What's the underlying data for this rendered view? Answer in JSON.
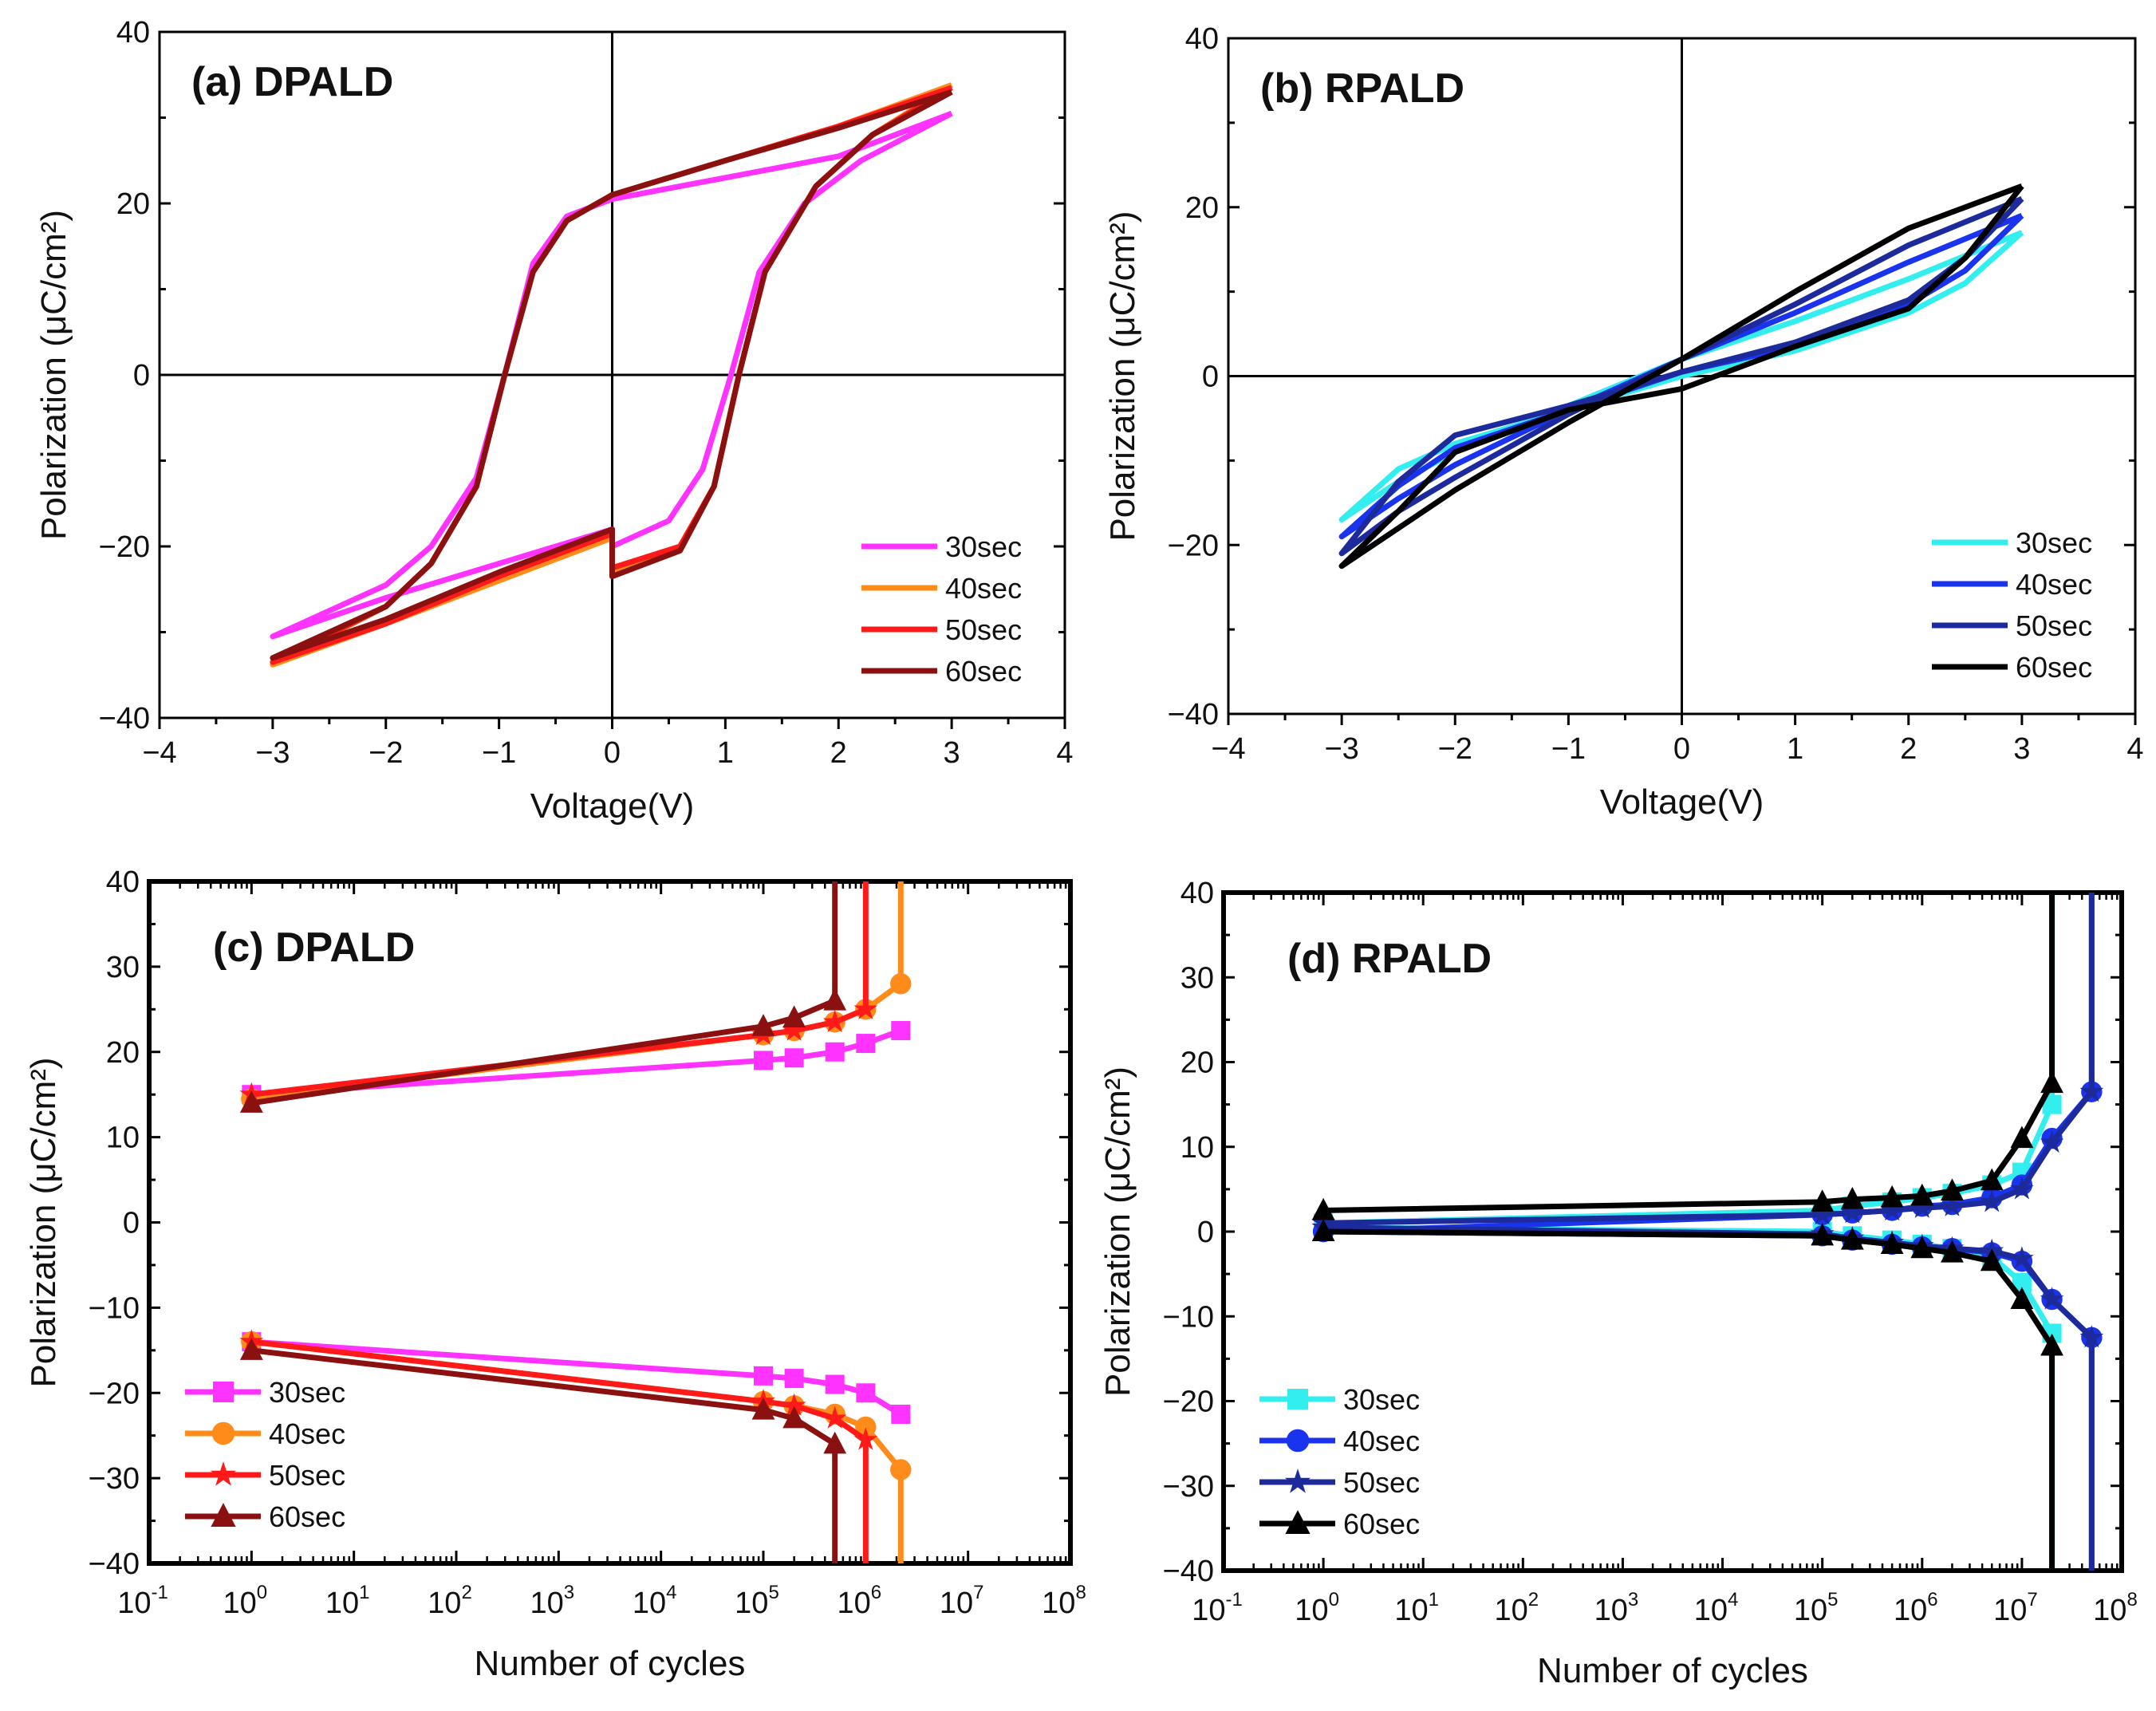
{
  "chart_data": [
    {
      "type": "line",
      "title": "(a) DPALD",
      "xlabel": "Voltage(V)",
      "ylabel": "Polarization (μC/cm²)",
      "xscale": "linear",
      "xlim": [
        -4,
        4
      ],
      "ylim": [
        -40,
        40
      ],
      "xticks": [
        -4,
        -3,
        -2,
        -1,
        0,
        1,
        2,
        3,
        4
      ],
      "yticks": [
        -40,
        -20,
        0,
        20,
        40
      ],
      "zero_axes": true,
      "grid": false,
      "legend": "bottom-right",
      "series": [
        {
          "name": "30sec",
          "color": "#ff33ff",
          "marker": "none",
          "points": [
            [
              3,
              30.5
            ],
            [
              2,
              25.5
            ],
            [
              1,
              23
            ],
            [
              0,
              20.5
            ],
            [
              -0.4,
              18.5
            ],
            [
              -0.7,
              13
            ],
            [
              -0.95,
              0
            ],
            [
              -1.2,
              -12
            ],
            [
              -1.6,
              -20
            ],
            [
              -2,
              -24.5
            ],
            [
              -3,
              -30.5
            ],
            [
              -2,
              -26
            ],
            [
              -1,
              -22
            ],
            [
              0,
              -18
            ],
            [
              0,
              -20
            ],
            [
              0.5,
              -17
            ],
            [
              0.8,
              -11
            ],
            [
              1.05,
              0
            ],
            [
              1.3,
              12
            ],
            [
              1.7,
              20
            ],
            [
              2.2,
              25
            ],
            [
              3,
              30.5
            ]
          ]
        },
        {
          "name": "40sec",
          "color": "#ff8c1a",
          "marker": "none",
          "points": [
            [
              3,
              33.8
            ],
            [
              2,
              29
            ],
            [
              1,
              25
            ],
            [
              0,
              21
            ],
            [
              -0.4,
              18
            ],
            [
              -0.7,
              12
            ],
            [
              -0.95,
              0
            ],
            [
              -1.2,
              -13
            ],
            [
              -1.6,
              -22
            ],
            [
              -2,
              -27
            ],
            [
              -3,
              -33.8
            ],
            [
              -2,
              -29
            ],
            [
              -1,
              -24
            ],
            [
              0,
              -19
            ],
            [
              0,
              -23
            ],
            [
              0.6,
              -20
            ],
            [
              0.9,
              -13
            ],
            [
              1.12,
              0
            ],
            [
              1.35,
              12
            ],
            [
              1.8,
              22
            ],
            [
              2.3,
              28
            ],
            [
              3,
              33.8
            ]
          ]
        },
        {
          "name": "50sec",
          "color": "#ff1a1a",
          "marker": "none",
          "points": [
            [
              3,
              33.5
            ],
            [
              2,
              29
            ],
            [
              1,
              25
            ],
            [
              0,
              21
            ],
            [
              -0.4,
              18
            ],
            [
              -0.7,
              12
            ],
            [
              -0.95,
              0
            ],
            [
              -1.2,
              -13
            ],
            [
              -1.6,
              -22
            ],
            [
              -2,
              -27
            ],
            [
              -3,
              -33.5
            ],
            [
              -2,
              -29
            ],
            [
              -1,
              -23.5
            ],
            [
              0,
              -18.5
            ],
            [
              0,
              -22.5
            ],
            [
              0.6,
              -20
            ],
            [
              0.9,
              -13
            ],
            [
              1.12,
              0
            ],
            [
              1.35,
              12
            ],
            [
              1.8,
              22
            ],
            [
              2.3,
              28
            ],
            [
              3,
              33.5
            ]
          ]
        },
        {
          "name": "60sec",
          "color": "#8b1010",
          "marker": "none",
          "points": [
            [
              3,
              33
            ],
            [
              2,
              28.8
            ],
            [
              1,
              25
            ],
            [
              0,
              21
            ],
            [
              -0.4,
              18
            ],
            [
              -0.7,
              12
            ],
            [
              -0.95,
              0
            ],
            [
              -1.2,
              -13
            ],
            [
              -1.6,
              -22
            ],
            [
              -2,
              -27
            ],
            [
              -3,
              -33
            ],
            [
              -2,
              -28.5
            ],
            [
              -1,
              -23
            ],
            [
              0,
              -18
            ],
            [
              0,
              -23.5
            ],
            [
              0.6,
              -20.5
            ],
            [
              0.9,
              -13
            ],
            [
              1.12,
              0
            ],
            [
              1.35,
              12
            ],
            [
              1.8,
              22
            ],
            [
              2.3,
              28
            ],
            [
              3,
              33
            ]
          ]
        }
      ]
    },
    {
      "type": "line",
      "title": "(b)  RPALD",
      "xlabel": "Voltage(V)",
      "ylabel": "Polarization (μC/cm²)",
      "xscale": "linear",
      "xlim": [
        -4,
        4
      ],
      "ylim": [
        -40,
        40
      ],
      "xticks": [
        -4,
        -3,
        -2,
        -1,
        0,
        1,
        2,
        3,
        4
      ],
      "yticks": [
        -40,
        -20,
        0,
        20,
        40
      ],
      "zero_axes": true,
      "grid": false,
      "legend": "bottom-right",
      "series": [
        {
          "name": "30sec",
          "color": "#33eeee",
          "marker": "none",
          "points": [
            [
              3,
              17
            ],
            [
              2,
              11.5
            ],
            [
              1,
              6.5
            ],
            [
              0,
              2
            ],
            [
              -1,
              -3.5
            ],
            [
              -2,
              -9
            ],
            [
              -2.5,
              -12.5
            ],
            [
              -3,
              -17
            ],
            [
              -2.5,
              -11
            ],
            [
              -2,
              -8
            ],
            [
              -1,
              -4
            ],
            [
              0,
              0
            ],
            [
              1,
              3
            ],
            [
              2,
              7.5
            ],
            [
              2.5,
              11
            ],
            [
              3,
              17
            ]
          ]
        },
        {
          "name": "40sec",
          "color": "#1a33ee",
          "marker": "none",
          "points": [
            [
              3,
              19
            ],
            [
              2,
              13.5
            ],
            [
              1,
              7.5
            ],
            [
              0,
              2
            ],
            [
              -1,
              -4
            ],
            [
              -2,
              -10.5
            ],
            [
              -2.5,
              -14.5
            ],
            [
              -3,
              -19
            ],
            [
              -2.5,
              -13
            ],
            [
              -2,
              -8.5
            ],
            [
              -1,
              -4
            ],
            [
              0,
              0.5
            ],
            [
              1,
              3.5
            ],
            [
              2,
              8.5
            ],
            [
              2.5,
              12.5
            ],
            [
              3,
              19
            ]
          ]
        },
        {
          "name": "50sec",
          "color": "#1c2a9c",
          "marker": "none",
          "points": [
            [
              3,
              21
            ],
            [
              2,
              15.5
            ],
            [
              1,
              8.5
            ],
            [
              0,
              2
            ],
            [
              -1,
              -4.5
            ],
            [
              -2,
              -12
            ],
            [
              -2.5,
              -16
            ],
            [
              -3,
              -21
            ],
            [
              -2.5,
              -12.5
            ],
            [
              -2,
              -7
            ],
            [
              -1,
              -3.5
            ],
            [
              0,
              0.5
            ],
            [
              1,
              4
            ],
            [
              2,
              9
            ],
            [
              2.5,
              14
            ],
            [
              3,
              21
            ]
          ]
        },
        {
          "name": "60sec",
          "color": "#000000",
          "marker": "none",
          "points": [
            [
              3,
              22.5
            ],
            [
              2,
              17.5
            ],
            [
              1,
              10
            ],
            [
              0,
              2
            ],
            [
              -1,
              -5.5
            ],
            [
              -2,
              -13.5
            ],
            [
              -2.5,
              -18
            ],
            [
              -3,
              -22.5
            ],
            [
              -2.5,
              -16
            ],
            [
              -2,
              -9
            ],
            [
              -1,
              -4
            ],
            [
              0,
              -1.5
            ],
            [
              1,
              3.5
            ],
            [
              2,
              8
            ],
            [
              2.5,
              14
            ],
            [
              3,
              22.5
            ]
          ]
        }
      ]
    },
    {
      "type": "line",
      "title": "(c)  DPALD",
      "xlabel": "Number of cycles",
      "ylabel": "Polarization (μC/cm²)",
      "xscale": "log",
      "xlim": [
        0.1,
        100000000
      ],
      "ylim": [
        -40,
        40
      ],
      "xtick_exponents": [
        -1,
        0,
        1,
        2,
        3,
        4,
        5,
        6,
        7,
        8
      ],
      "yticks": [
        -40,
        -30,
        -20,
        -10,
        0,
        10,
        20,
        30,
        40
      ],
      "grid": false,
      "legend": "bottom-left",
      "series": [
        {
          "name": "30sec",
          "color": "#ff33ff",
          "marker": "square",
          "x": [
            1,
            100000,
            200000,
            500000,
            1000000,
            2200000
          ],
          "up": [
            15,
            19,
            19.3,
            20,
            21,
            22.5
          ],
          "down": [
            -14,
            -18,
            -18.3,
            -19,
            -20,
            -22.5
          ]
        },
        {
          "name": "40sec",
          "color": "#ff8c1a",
          "marker": "circle",
          "x": [
            1,
            100000,
            200000,
            500000,
            1000000,
            2200000
          ],
          "up": [
            14.5,
            22,
            22.5,
            23.5,
            25,
            28
          ],
          "down": [
            -14,
            -21,
            -21.5,
            -22.5,
            -24,
            -29
          ],
          "breakdown": 2200000
        },
        {
          "name": "50sec",
          "color": "#ff1a1a",
          "marker": "star",
          "x": [
            1,
            100000,
            200000,
            500000,
            1000000
          ],
          "up": [
            15,
            22,
            22.5,
            23.5,
            25
          ],
          "down": [
            -14,
            -21,
            -21.5,
            -23,
            -25.5
          ],
          "breakdown": 1000000
        },
        {
          "name": "60sec",
          "color": "#8b1010",
          "marker": "triangle",
          "x": [
            1,
            100000,
            200000,
            500000
          ],
          "up": [
            14,
            23,
            24,
            26
          ],
          "down": [
            -15,
            -22,
            -23,
            -26
          ],
          "breakdown": 500000
        }
      ]
    },
    {
      "type": "line",
      "title": "(d) RPALD",
      "xlabel": "Number of cycles",
      "ylabel": "Polarization (μC/cm²)",
      "xscale": "log",
      "xlim": [
        0.1,
        100000000
      ],
      "ylim": [
        -40,
        40
      ],
      "xtick_exponents": [
        -1,
        0,
        1,
        2,
        3,
        4,
        5,
        6,
        7,
        8
      ],
      "yticks": [
        -40,
        -30,
        -20,
        -10,
        0,
        10,
        20,
        30,
        40
      ],
      "grid": false,
      "legend": "bottom-left",
      "series": [
        {
          "name": "30sec",
          "color": "#33eeee",
          "marker": "square",
          "x": [
            1,
            100000,
            200000,
            500000,
            1000000,
            2000000,
            5000000,
            10000000,
            20000000
          ],
          "up": [
            1,
            2.5,
            3,
            3.5,
            4,
            4.5,
            5.5,
            7,
            15
          ],
          "down": [
            0.5,
            0,
            -0.5,
            -1,
            -1.5,
            -2,
            -3,
            -6,
            -12
          ],
          "breakdown": 20000000
        },
        {
          "name": "40sec",
          "color": "#1a33ee",
          "marker": "circle",
          "x": [
            1,
            100000,
            200000,
            500000,
            1000000,
            2000000,
            5000000,
            10000000,
            20000000,
            50000000
          ],
          "up": [
            0,
            2,
            2.2,
            2.5,
            3,
            3.2,
            4,
            5.5,
            11,
            16.5
          ],
          "down": [
            0,
            -0.5,
            -1,
            -1.5,
            -1.8,
            -2,
            -2.5,
            -3.5,
            -8,
            -12.5
          ],
          "breakdown": 50000000
        },
        {
          "name": "50sec",
          "color": "#1c2a9c",
          "marker": "star",
          "x": [
            1,
            100000,
            200000,
            500000,
            1000000,
            2000000,
            5000000,
            10000000,
            20000000,
            50000000
          ],
          "up": [
            1,
            2,
            2.2,
            2.5,
            2.8,
            3,
            3.5,
            5,
            10.5,
            16.5
          ],
          "down": [
            0.5,
            -0.3,
            -0.8,
            -1.3,
            -1.7,
            -2,
            -2.3,
            -3.2,
            -8,
            -12.5
          ],
          "breakdown": 50000000
        },
        {
          "name": "60sec",
          "color": "#000000",
          "marker": "triangle",
          "x": [
            1,
            100000,
            200000,
            500000,
            1000000,
            2000000,
            5000000,
            10000000,
            20000000
          ],
          "up": [
            2.5,
            3.5,
            3.8,
            4,
            4.2,
            4.8,
            6,
            11,
            17.5
          ],
          "down": [
            0,
            -0.5,
            -1,
            -1.5,
            -2,
            -2.5,
            -3.5,
            -8,
            -13.5
          ],
          "breakdown": 20000000
        }
      ]
    }
  ]
}
